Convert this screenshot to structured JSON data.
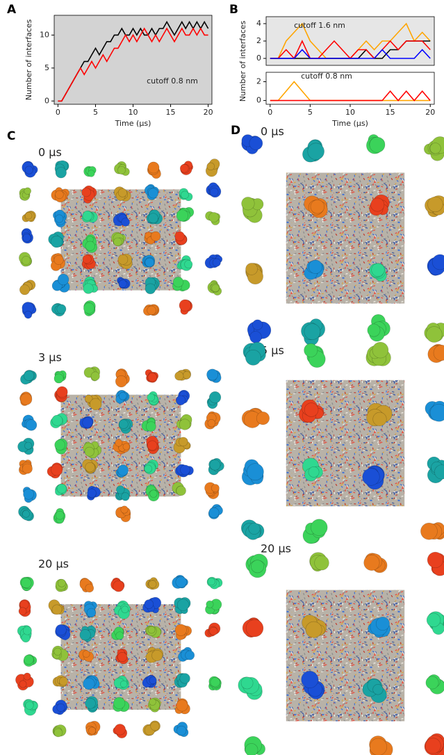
{
  "panel_labels": [
    "A",
    "B",
    "C",
    "D"
  ],
  "snapshot_labels": {
    "C": [
      "0 μs",
      "3 μs",
      "20 μs"
    ],
    "D": [
      "0 μs",
      "5 μs",
      "20 μs"
    ]
  },
  "chart_data": [
    {
      "type": "line",
      "x_label": "Time (μs)",
      "y_label": "Number of interfaces",
      "annotation": "cutoff 0.8 nm",
      "xlim": [
        -0.5,
        20.5
      ],
      "xticks": [
        0,
        5,
        10,
        15,
        20
      ],
      "ylim": [
        -0.5,
        13
      ],
      "yticks": [
        0,
        5,
        10
      ],
      "x": [
        0,
        0.5,
        1,
        1.5,
        2,
        2.5,
        3,
        3.5,
        4,
        4.5,
        5,
        5.5,
        6,
        6.5,
        7,
        7.5,
        8,
        8.5,
        9,
        9.5,
        10,
        10.5,
        11,
        11.5,
        12,
        12.5,
        13,
        13.5,
        14,
        14.5,
        15,
        15.5,
        16,
        16.5,
        17,
        17.5,
        18,
        18.5,
        19,
        19.5,
        20
      ],
      "series": [
        {
          "color": "#000000",
          "values": [
            0,
            0,
            1,
            2,
            3,
            4,
            5,
            6,
            6,
            7,
            8,
            7,
            8,
            9,
            9,
            10,
            10,
            11,
            10,
            10,
            11,
            10,
            11,
            10,
            10,
            11,
            10,
            11,
            11,
            12,
            11,
            10,
            11,
            12,
            11,
            12,
            11,
            12,
            11,
            12,
            11
          ]
        },
        {
          "color": "#ff0000",
          "values": [
            0,
            0,
            1,
            2,
            3,
            4,
            5,
            4,
            5,
            6,
            5,
            6,
            7,
            6,
            7,
            8,
            8,
            9,
            10,
            9,
            10,
            9,
            10,
            11,
            10,
            9,
            10,
            9,
            10,
            11,
            10,
            9,
            10,
            11,
            10,
            10,
            11,
            10,
            11,
            10,
            10
          ]
        }
      ]
    },
    {
      "type": "line",
      "y_label": "Number of interfaces",
      "annotation": "cutoff 1.6 nm",
      "xlim": [
        -0.5,
        20.5
      ],
      "ylim": [
        -0.8,
        4.8
      ],
      "yticks": [
        0,
        2,
        4
      ],
      "x": [
        0,
        1,
        2,
        3,
        4,
        5,
        6,
        7,
        8,
        9,
        10,
        11,
        12,
        13,
        14,
        15,
        16,
        17,
        18,
        19,
        20
      ],
      "series": [
        {
          "color": "#ffa500",
          "values": [
            0,
            0,
            2,
            3,
            4,
            2,
            1,
            0,
            0,
            0,
            0,
            1,
            2,
            1,
            2,
            2,
            3,
            4,
            2,
            3,
            2
          ]
        },
        {
          "color": "#000000",
          "values": [
            0,
            0,
            0,
            0,
            0,
            0,
            0,
            0,
            0,
            0,
            0,
            0,
            1,
            0,
            0,
            1,
            1,
            2,
            2,
            2,
            2
          ]
        },
        {
          "color": "#ff0000",
          "values": [
            0,
            0,
            1,
            0,
            2,
            0,
            0,
            1,
            2,
            1,
            0,
            1,
            1,
            0,
            1,
            2,
            1,
            2,
            2,
            2,
            1
          ]
        },
        {
          "color": "#0000ff",
          "values": [
            0,
            0,
            0,
            0,
            1,
            0,
            0,
            0,
            0,
            0,
            0,
            0,
            0,
            0,
            1,
            0,
            0,
            0,
            0,
            1,
            0
          ]
        }
      ]
    },
    {
      "type": "line",
      "x_label": "Time (μs)",
      "annotation": "cutoff 0.8 nm",
      "xlim": [
        -0.5,
        20.5
      ],
      "xticks": [
        0,
        5,
        10,
        15,
        20
      ],
      "ylim": [
        -0.4,
        3
      ],
      "yticks": [
        0,
        2
      ],
      "x": [
        0,
        1,
        2,
        3,
        4,
        5,
        6,
        7,
        8,
        9,
        10,
        11,
        12,
        13,
        14,
        15,
        16,
        17,
        18,
        19,
        20
      ],
      "series": [
        {
          "color": "#ffa500",
          "values": [
            0,
            0,
            1,
            2,
            1,
            0,
            0,
            0,
            0,
            0,
            0,
            0,
            0,
            0,
            0,
            0,
            0,
            0,
            0,
            0,
            0
          ]
        },
        {
          "color": "#ff0000",
          "values": [
            0,
            0,
            0,
            0,
            0,
            0,
            0,
            0,
            0,
            0,
            0,
            0,
            0,
            0,
            0,
            1,
            0,
            1,
            0,
            1,
            0
          ]
        }
      ]
    }
  ]
}
